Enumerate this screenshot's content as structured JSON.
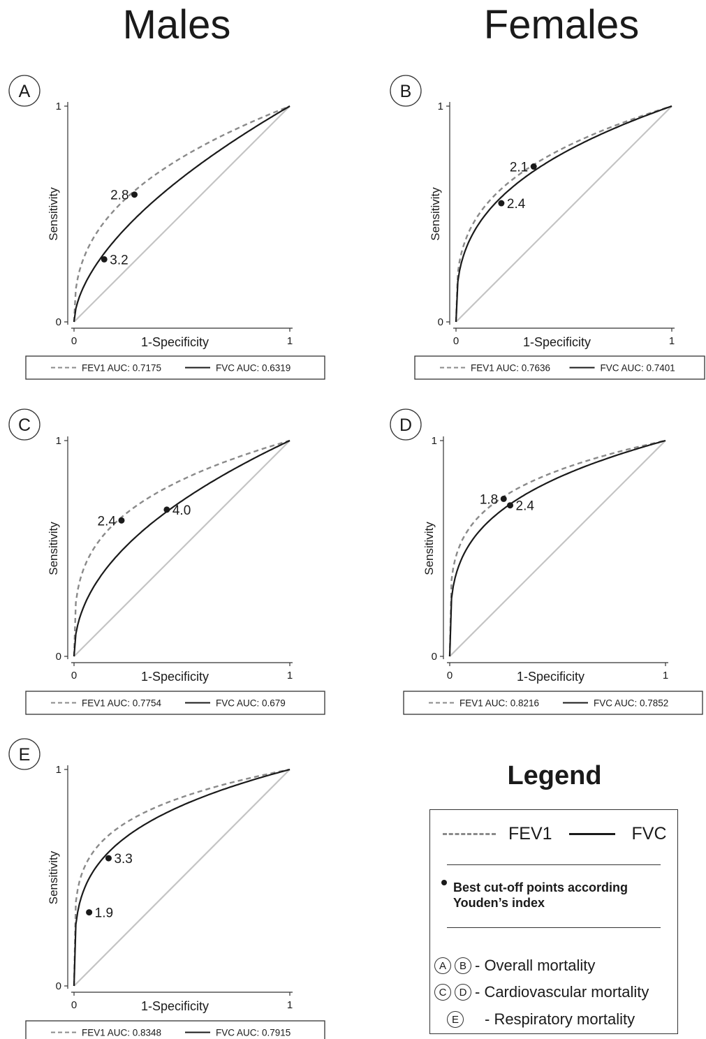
{
  "columns": {
    "left_title": "Males",
    "right_title": "Females"
  },
  "chart_data": [
    {
      "panel": "A",
      "type": "line",
      "xlabel": "1-Specificity",
      "ylabel": "Sensitivity",
      "xlim": [
        0,
        1
      ],
      "ylim": [
        0,
        1
      ],
      "xticks": [
        "0",
        "1"
      ],
      "yticks": [
        "0",
        "1"
      ],
      "series": [
        {
          "name": "FEV1",
          "auc_label": "FEV1 AUC: 0.7175",
          "style": "dashed",
          "color": "#8a8a8a",
          "gamma": 0.392,
          "cutoff": {
            "x": 0.28,
            "y": 0.59,
            "label": "2.8"
          }
        },
        {
          "name": "FVC",
          "auc_label": "FVC AUC: 0.6319",
          "style": "solid",
          "color": "#1a1a1a",
          "gamma": 0.583,
          "cutoff": {
            "x": 0.14,
            "y": 0.29,
            "label": "3.2"
          }
        }
      ]
    },
    {
      "panel": "B",
      "type": "line",
      "xlabel": "1-Specificity",
      "ylabel": "Sensitivity",
      "xlim": [
        0,
        1
      ],
      "ylim": [
        0,
        1
      ],
      "xticks": [
        "0",
        "1"
      ],
      "yticks": [
        "0",
        "1"
      ],
      "series": [
        {
          "name": "FEV1",
          "auc_label": "FEV1 AUC: 0.7636",
          "style": "dashed",
          "color": "#8a8a8a",
          "gamma": 0.31,
          "cutoff": {
            "x": 0.36,
            "y": 0.72,
            "label": "2.1"
          }
        },
        {
          "name": "FVC",
          "auc_label": "FVC AUC: 0.7401",
          "style": "solid",
          "color": "#1a1a1a",
          "gamma": 0.351,
          "cutoff": {
            "x": 0.21,
            "y": 0.55,
            "label": "2.4"
          }
        }
      ]
    },
    {
      "panel": "C",
      "type": "line",
      "xlabel": "1-Specificity",
      "ylabel": "Sensitivity",
      "xlim": [
        0,
        1
      ],
      "ylim": [
        0,
        1
      ],
      "xticks": [
        "0",
        "1"
      ],
      "yticks": [
        "0",
        "1"
      ],
      "series": [
        {
          "name": "FEV1",
          "auc_label": "FEV1 AUC: 0.7754",
          "style": "dashed",
          "color": "#8a8a8a",
          "gamma": 0.29,
          "cutoff": {
            "x": 0.22,
            "y": 0.63,
            "label": "2.4"
          }
        },
        {
          "name": "FVC",
          "auc_label": "FVC AUC: 0.679",
          "style": "solid",
          "color": "#1a1a1a",
          "gamma": 0.473,
          "cutoff": {
            "x": 0.43,
            "y": 0.68,
            "label": "4.0"
          }
        }
      ]
    },
    {
      "panel": "D",
      "type": "line",
      "xlabel": "1-Specificity",
      "ylabel": "Sensitivity",
      "xlim": [
        0,
        1
      ],
      "ylim": [
        0,
        1
      ],
      "xticks": [
        "0",
        "1"
      ],
      "yticks": [
        "0",
        "1"
      ],
      "series": [
        {
          "name": "FEV1",
          "auc_label": "FEV1 AUC: 0.8216",
          "style": "dashed",
          "color": "#8a8a8a",
          "gamma": 0.217,
          "cutoff": {
            "x": 0.25,
            "y": 0.73,
            "label": "1.8"
          }
        },
        {
          "name": "FVC",
          "auc_label": "FVC AUC: 0.7852",
          "style": "solid",
          "color": "#1a1a1a",
          "gamma": 0.274,
          "cutoff": {
            "x": 0.28,
            "y": 0.7,
            "label": "2.4"
          }
        }
      ]
    },
    {
      "panel": "E",
      "type": "line",
      "xlabel": "1-Specificity",
      "ylabel": "Sensitivity",
      "xlim": [
        0,
        1
      ],
      "ylim": [
        0,
        1
      ],
      "xticks": [
        "0",
        "1"
      ],
      "yticks": [
        "0",
        "1"
      ],
      "series": [
        {
          "name": "FEV1",
          "auc_label": "FEV1 AUC: 0.8348",
          "style": "dashed",
          "color": "#8a8a8a",
          "gamma": 0.198,
          "cutoff": {
            "x": 0.07,
            "y": 0.34,
            "label": "1.9"
          }
        },
        {
          "name": "FVC",
          "auc_label": "FVC AUC: 0.7915",
          "style": "solid",
          "color": "#1a1a1a",
          "gamma": 0.263,
          "cutoff": {
            "x": 0.16,
            "y": 0.59,
            "label": "3.3"
          }
        }
      ]
    }
  ],
  "legend": {
    "title": "Legend",
    "fev1_label": "FEV1",
    "fvc_label": "FVC",
    "cutoff_note": "Best cut-off points according Youden’s index",
    "items": [
      {
        "badges": [
          "A",
          "B"
        ],
        "text": "- Overall mortality"
      },
      {
        "badges": [
          "C",
          "D"
        ],
        "text": "- Cardiovascular mortality"
      },
      {
        "badges": [
          "E"
        ],
        "text": "- Respiratory mortality"
      }
    ]
  }
}
